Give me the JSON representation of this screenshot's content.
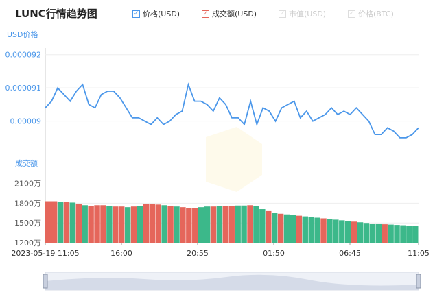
{
  "header": {
    "title": "LUNC行情趋势图"
  },
  "legend": [
    {
      "label": "价格(USD)",
      "active": true,
      "color": "#4b97ea"
    },
    {
      "label": "成交额(USD)",
      "active": true,
      "color": "#e5665b"
    },
    {
      "label": "市值(USD)",
      "active": false,
      "color": "#cccccc"
    },
    {
      "label": "价格(BTC)",
      "active": false,
      "color": "#cccccc"
    }
  ],
  "chart_data": {
    "type": "line",
    "price_axis": {
      "label": "USD价格",
      "ticks": [
        "0.000092",
        "0.000091",
        "0.00009"
      ],
      "tick_values": [
        9.2e-05,
        9.1e-05,
        9e-05
      ]
    },
    "volume_axis": {
      "label": "成交额",
      "ticks": [
        "2100万",
        "1800万",
        "1500万",
        "1200万"
      ],
      "tick_values": [
        21000000,
        18000000,
        15000000,
        12000000
      ]
    },
    "x_ticks": [
      "2023-05-19 11:05",
      "16:00",
      "20:55",
      "01:50",
      "06:45",
      "11:05"
    ],
    "series": [
      {
        "name": "价格(USD)",
        "color": "#4b97ea",
        "points_per_segment": 12,
        "values": [
          9.04e-05,
          9.06e-05,
          9.1e-05,
          9.08e-05,
          9.06e-05,
          9.09e-05,
          9.11e-05,
          9.05e-05,
          9.04e-05,
          9.08e-05,
          9.09e-05,
          9.09e-05,
          9.07e-05,
          9.04e-05,
          9.01e-05,
          9.01e-05,
          9e-05,
          8.99e-05,
          9.01e-05,
          8.99e-05,
          9e-05,
          9.02e-05,
          9.03e-05,
          9.11e-05,
          9.06e-05,
          9.06e-05,
          9.05e-05,
          9.03e-05,
          9.07e-05,
          9.05e-05,
          9.01e-05,
          9.01e-05,
          8.99e-05,
          9.06e-05,
          8.99e-05,
          9.04e-05,
          9.03e-05,
          9e-05,
          9.04e-05,
          9.05e-05,
          9.06e-05,
          9.01e-05,
          9.03e-05,
          9e-05,
          9.01e-05,
          9.02e-05,
          9.04e-05,
          9.02e-05,
          9.03e-05,
          9.02e-05,
          9.04e-05,
          9.02e-05,
          9e-05,
          8.96e-05,
          8.96e-05,
          8.98e-05,
          8.97e-05,
          8.95e-05,
          8.95e-05,
          8.96e-05,
          8.98e-05
        ]
      },
      {
        "name": "成交额(USD)",
        "color_up": "#e5665b",
        "color_down": "#3cb88a",
        "values": [
          18300000,
          18300000,
          18250000,
          18200000,
          18100000,
          17900000,
          17700000,
          17600000,
          17700000,
          17700000,
          17600000,
          17500000,
          17500000,
          17400000,
          17500000,
          17600000,
          17900000,
          17850000,
          17800000,
          17700000,
          17600000,
          17500000,
          17400000,
          17300000,
          17300000,
          17400000,
          17500000,
          17500000,
          17600000,
          17600000,
          17600000,
          17650000,
          17650000,
          17700000,
          17600000,
          17100000,
          16800000,
          16500000,
          16400000,
          16300000,
          16200000,
          16100000,
          16000000,
          15900000,
          15800000,
          15700000,
          15600000,
          15500000,
          15400000,
          15300000,
          15200000,
          15100000,
          15000000,
          14900000,
          14850000,
          14800000,
          14750000,
          14700000,
          14650000,
          14600000,
          14550000
        ],
        "up_flags": [
          1,
          1,
          0,
          1,
          0,
          1,
          0,
          1,
          1,
          1,
          0,
          1,
          1,
          0,
          1,
          0,
          1,
          1,
          1,
          0,
          1,
          0,
          1,
          1,
          1,
          0,
          0,
          1,
          0,
          1,
          1,
          0,
          0,
          1,
          0,
          0,
          1,
          0,
          1,
          0,
          0,
          1,
          0,
          0,
          0,
          1,
          0,
          0,
          0,
          0,
          1,
          0,
          0,
          0,
          0,
          1,
          0,
          0,
          0,
          0,
          0
        ]
      }
    ],
    "price_ylim": [
      8.89e-05,
      9.22e-05
    ],
    "volume_ylim": [
      12000000,
      22000000
    ]
  }
}
